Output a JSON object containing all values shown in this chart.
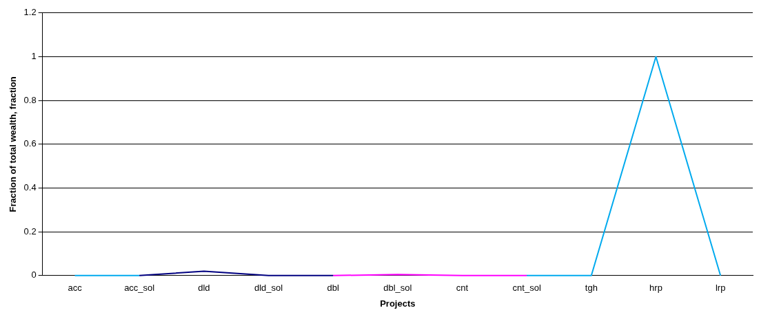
{
  "chart_data": {
    "type": "line",
    "xlabel": "Projects",
    "ylabel": "Fraction of total wealth, fraction",
    "categories": [
      "acc",
      "acc_sol",
      "dld",
      "dld_sol",
      "dbl",
      "dbl_sol",
      "cnt",
      "cnt_sol",
      "tgh",
      "hrp",
      "lrp"
    ],
    "series": [
      {
        "color": "#00aaee",
        "values": [
          0,
          0,
          null,
          null,
          null,
          null,
          null,
          0,
          0,
          1,
          0
        ]
      },
      {
        "color": "#000080",
        "values": [
          null,
          0,
          0.02,
          0,
          0,
          null,
          null,
          null,
          null,
          null,
          null
        ]
      },
      {
        "color": "#ff00ff",
        "values": [
          null,
          null,
          null,
          null,
          0,
          0.005,
          0,
          0,
          null,
          null,
          null
        ]
      }
    ],
    "ylim": [
      0,
      1.2
    ],
    "yticks": [
      0,
      0.2,
      0.4,
      0.6,
      0.8,
      1,
      1.2
    ],
    "grid": "y",
    "legend": false,
    "marker": "none",
    "line_style": "solid"
  }
}
